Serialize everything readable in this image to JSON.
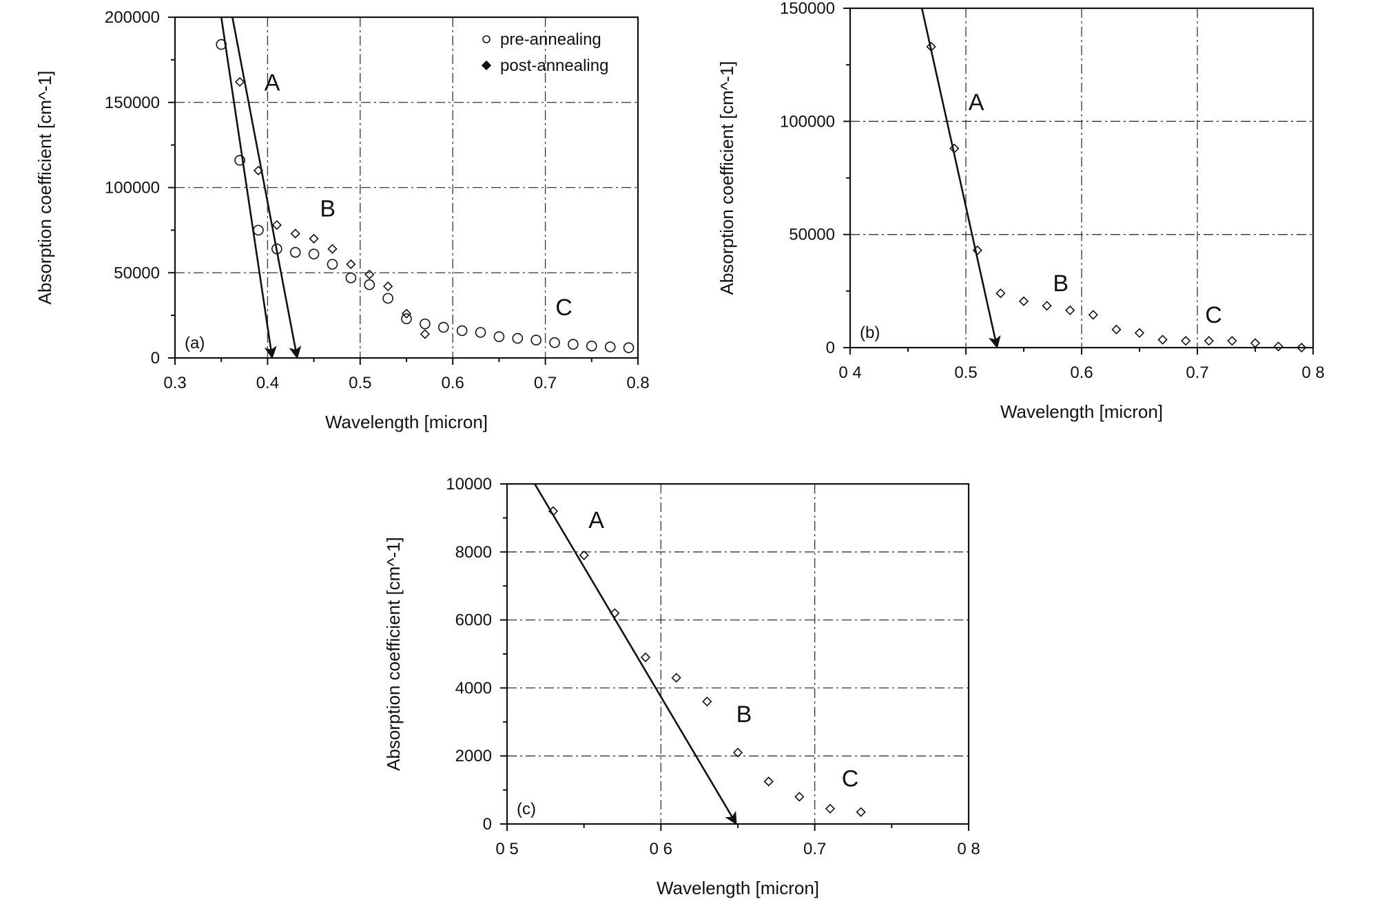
{
  "chart_data": [
    {
      "type": "scatter",
      "panel_label": "(a)",
      "xlabel": "Wavelength  [micron]",
      "ylabel": "Absorption  coefficient  [cm^-1]",
      "xlim": [
        0.3,
        0.8
      ],
      "ylim": [
        0,
        200000
      ],
      "x_ticks": [
        0.3,
        0.4,
        0.5,
        0.6,
        0.7,
        0.8
      ],
      "x_tick_labels": [
        "0.3",
        "0.4",
        "0.5",
        "0.6",
        "0.7",
        "0.8"
      ],
      "y_ticks": [
        0,
        50000,
        100000,
        150000,
        200000
      ],
      "y_tick_labels": [
        "0",
        "50000",
        "100000",
        "150000",
        "200000"
      ],
      "grid": true,
      "legend": {
        "position": "top-right",
        "entries": [
          {
            "label": "pre-annealing",
            "marker": "circle"
          },
          {
            "label": "post-annealing",
            "marker": "diamond"
          }
        ]
      },
      "series": [
        {
          "name": "pre-annealing",
          "marker": "circle",
          "x": [
            0.35,
            0.37,
            0.39,
            0.41,
            0.43,
            0.45,
            0.47,
            0.49,
            0.51,
            0.53,
            0.55,
            0.57,
            0.59,
            0.61,
            0.63,
            0.65,
            0.67,
            0.69,
            0.71,
            0.73,
            0.75,
            0.77,
            0.79
          ],
          "y": [
            184000,
            116000,
            75000,
            64000,
            62000,
            61000,
            55000,
            47000,
            43000,
            35000,
            23000,
            20000,
            18000,
            16000,
            15000,
            12500,
            11500,
            10500,
            9000,
            8000,
            7000,
            6500,
            6000
          ]
        },
        {
          "name": "post-annealing",
          "marker": "diamond",
          "x": [
            0.37,
            0.39,
            0.41,
            0.43,
            0.45,
            0.47,
            0.49,
            0.51,
            0.53,
            0.55,
            0.57
          ],
          "y": [
            162000,
            110000,
            78000,
            73000,
            70000,
            64000,
            55000,
            49000,
            42000,
            26000,
            14000
          ]
        }
      ],
      "fit_lines": [
        {
          "x": [
            0.35,
            0.405
          ],
          "y": [
            200000,
            0
          ]
        },
        {
          "x": [
            0.362,
            0.432
          ],
          "y": [
            200000,
            0
          ]
        }
      ],
      "annotations": [
        {
          "text": "A",
          "x": 0.405,
          "y": 157000
        },
        {
          "text": "B",
          "x": 0.465,
          "y": 83000
        },
        {
          "text": "C",
          "x": 0.72,
          "y": 25000
        }
      ]
    },
    {
      "type": "scatter",
      "panel_label": "(b)",
      "xlabel": "Wavelength  [micron]",
      "ylabel": "Absorption  coefficient  [cm^-1]",
      "xlim": [
        0.4,
        0.8
      ],
      "ylim": [
        0,
        150000
      ],
      "x_ticks": [
        0.4,
        0.5,
        0.6,
        0.7,
        0.8
      ],
      "x_tick_labels": [
        "0 4",
        "0.5",
        "0.6",
        "0.7",
        "0 8"
      ],
      "y_ticks": [
        0,
        50000,
        100000,
        150000
      ],
      "y_tick_labels": [
        "0",
        "50000",
        "100000",
        "150000"
      ],
      "grid": true,
      "series": [
        {
          "marker": "diamond",
          "x": [
            0.47,
            0.49,
            0.51,
            0.53,
            0.55,
            0.57,
            0.59,
            0.61,
            0.63,
            0.65,
            0.67,
            0.69,
            0.71,
            0.73,
            0.75,
            0.77,
            0.79
          ],
          "y": [
            133000,
            88000,
            43000,
            24000,
            20500,
            18500,
            16500,
            14500,
            8000,
            6500,
            3500,
            3000,
            3000,
            3000,
            2000,
            500,
            0
          ]
        }
      ],
      "fit_lines": [
        {
          "x": [
            0.462,
            0.527
          ],
          "y": [
            150000,
            0
          ]
        }
      ],
      "annotations": [
        {
          "text": "A",
          "x": 0.509,
          "y": 105000
        },
        {
          "text": "B",
          "x": 0.582,
          "y": 25000
        },
        {
          "text": "C",
          "x": 0.714,
          "y": 11000
        }
      ]
    },
    {
      "type": "scatter",
      "panel_label": "(c)",
      "xlabel": "Wavelength  [micron]",
      "ylabel": "Absorption  coefficient  [cm^-1]",
      "xlim": [
        0.5,
        0.8
      ],
      "ylim": [
        0,
        10000
      ],
      "x_ticks": [
        0.5,
        0.6,
        0.7,
        0.8
      ],
      "x_tick_labels": [
        "0 5",
        "0 6",
        "0.7",
        "0 8"
      ],
      "y_ticks": [
        0,
        2000,
        4000,
        6000,
        8000,
        10000
      ],
      "y_tick_labels": [
        "0",
        "2000",
        "4000",
        "6000",
        "8000",
        "10000"
      ],
      "grid": true,
      "series": [
        {
          "marker": "diamond",
          "x": [
            0.53,
            0.55,
            0.57,
            0.59,
            0.61,
            0.63,
            0.65,
            0.67,
            0.69,
            0.71,
            0.73
          ],
          "y": [
            9200,
            7900,
            6200,
            4900,
            4300,
            3600,
            2100,
            1250,
            800,
            450,
            350
          ]
        }
      ],
      "fit_lines": [
        {
          "x": [
            0.518,
            0.649
          ],
          "y": [
            10000,
            0
          ]
        }
      ],
      "annotations": [
        {
          "text": "A",
          "x": 0.558,
          "y": 8700
        },
        {
          "text": "B",
          "x": 0.654,
          "y": 3000
        },
        {
          "text": "C",
          "x": 0.723,
          "y": 1100
        }
      ]
    }
  ]
}
